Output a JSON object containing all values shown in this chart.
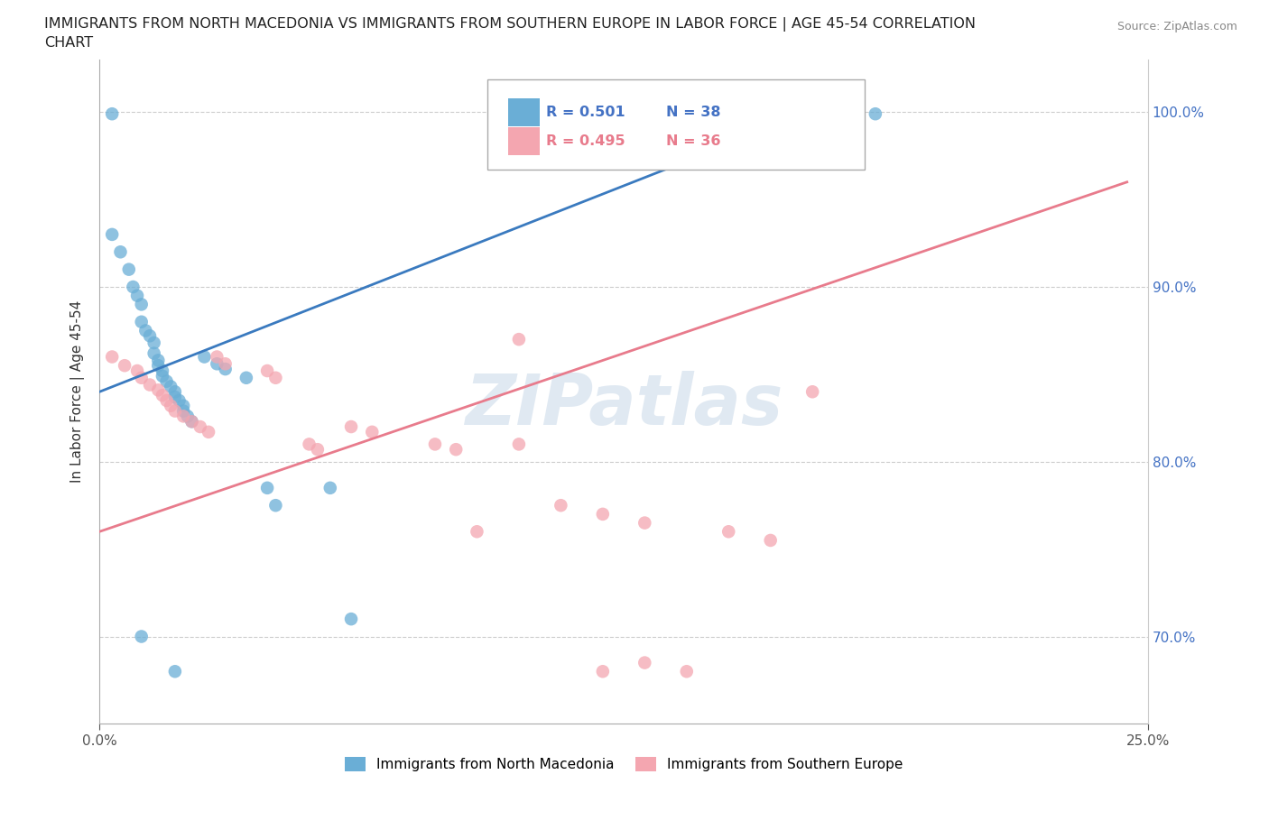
{
  "title_line1": "IMMIGRANTS FROM NORTH MACEDONIA VS IMMIGRANTS FROM SOUTHERN EUROPE IN LABOR FORCE | AGE 45-54 CORRELATION",
  "title_line2": "CHART",
  "source_text": "Source: ZipAtlas.com",
  "ylabel": "In Labor Force | Age 45-54",
  "xlim": [
    0.0,
    0.25
  ],
  "ylim": [
    0.65,
    1.03
  ],
  "yticks": [
    0.7,
    0.8,
    0.9,
    1.0
  ],
  "ytick_labels": [
    "70.0%",
    "80.0%",
    "90.0%",
    "100.0%"
  ],
  "xticks": [
    0.0,
    0.25
  ],
  "xtick_labels": [
    "0.0%",
    "25.0%"
  ],
  "r_blue": 0.501,
  "n_blue": 38,
  "r_pink": 0.495,
  "n_pink": 36,
  "legend_label_blue": "Immigrants from North Macedonia",
  "legend_label_pink": "Immigrants from Southern Europe",
  "watermark": "ZIPatlas",
  "blue_color": "#6aaed6",
  "pink_color": "#f4a6b0",
  "blue_line_color": "#3a7abf",
  "pink_line_color": "#e87b8c",
  "blue_scatter": [
    [
      0.003,
      0.999
    ],
    [
      0.003,
      0.93
    ],
    [
      0.005,
      0.92
    ],
    [
      0.007,
      0.91
    ],
    [
      0.008,
      0.9
    ],
    [
      0.009,
      0.895
    ],
    [
      0.01,
      0.89
    ],
    [
      0.01,
      0.88
    ],
    [
      0.011,
      0.875
    ],
    [
      0.012,
      0.872
    ],
    [
      0.013,
      0.868
    ],
    [
      0.013,
      0.862
    ],
    [
      0.014,
      0.858
    ],
    [
      0.014,
      0.855
    ],
    [
      0.015,
      0.852
    ],
    [
      0.015,
      0.849
    ],
    [
      0.016,
      0.846
    ],
    [
      0.017,
      0.843
    ],
    [
      0.018,
      0.84
    ],
    [
      0.018,
      0.837
    ],
    [
      0.019,
      0.835
    ],
    [
      0.02,
      0.832
    ],
    [
      0.02,
      0.829
    ],
    [
      0.021,
      0.826
    ],
    [
      0.022,
      0.823
    ],
    [
      0.025,
      0.86
    ],
    [
      0.028,
      0.856
    ],
    [
      0.03,
      0.853
    ],
    [
      0.035,
      0.848
    ],
    [
      0.04,
      0.785
    ],
    [
      0.042,
      0.775
    ],
    [
      0.055,
      0.785
    ],
    [
      0.06,
      0.71
    ],
    [
      0.01,
      0.7
    ],
    [
      0.018,
      0.68
    ],
    [
      0.14,
      0.999
    ],
    [
      0.165,
      0.999
    ],
    [
      0.185,
      0.999
    ]
  ],
  "pink_scatter": [
    [
      0.003,
      0.86
    ],
    [
      0.006,
      0.855
    ],
    [
      0.009,
      0.852
    ],
    [
      0.01,
      0.848
    ],
    [
      0.012,
      0.844
    ],
    [
      0.014,
      0.841
    ],
    [
      0.015,
      0.838
    ],
    [
      0.016,
      0.835
    ],
    [
      0.017,
      0.832
    ],
    [
      0.018,
      0.829
    ],
    [
      0.02,
      0.826
    ],
    [
      0.022,
      0.823
    ],
    [
      0.024,
      0.82
    ],
    [
      0.026,
      0.817
    ],
    [
      0.028,
      0.86
    ],
    [
      0.03,
      0.856
    ],
    [
      0.04,
      0.852
    ],
    [
      0.042,
      0.848
    ],
    [
      0.05,
      0.81
    ],
    [
      0.052,
      0.807
    ],
    [
      0.06,
      0.82
    ],
    [
      0.065,
      0.817
    ],
    [
      0.08,
      0.81
    ],
    [
      0.085,
      0.807
    ],
    [
      0.09,
      0.76
    ],
    [
      0.1,
      0.81
    ],
    [
      0.11,
      0.775
    ],
    [
      0.12,
      0.77
    ],
    [
      0.13,
      0.765
    ],
    [
      0.15,
      0.76
    ],
    [
      0.16,
      0.755
    ],
    [
      0.17,
      0.84
    ],
    [
      0.1,
      0.87
    ],
    [
      0.12,
      0.68
    ],
    [
      0.14,
      0.68
    ],
    [
      0.13,
      0.685
    ]
  ],
  "blue_line": [
    [
      0.0,
      0.84
    ],
    [
      0.175,
      1.005
    ]
  ],
  "pink_line": [
    [
      0.0,
      0.76
    ],
    [
      0.245,
      0.96
    ]
  ]
}
